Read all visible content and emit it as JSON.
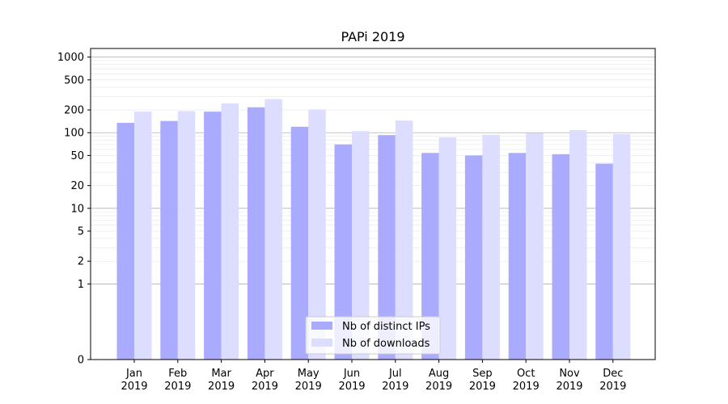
{
  "chart_data": {
    "type": "bar",
    "title": "PAPi 2019",
    "xlabel": "",
    "ylabel": "",
    "yscale": "symlog",
    "ylim": [
      0,
      1300
    ],
    "grid": true,
    "legend_position": "bottom-center",
    "categories": [
      [
        "Jan",
        "2019"
      ],
      [
        "Feb",
        "2019"
      ],
      [
        "Mar",
        "2019"
      ],
      [
        "Apr",
        "2019"
      ],
      [
        "May",
        "2019"
      ],
      [
        "Jun",
        "2019"
      ],
      [
        "Jul",
        "2019"
      ],
      [
        "Aug",
        "2019"
      ],
      [
        "Sep",
        "2019"
      ],
      [
        "Oct",
        "2019"
      ],
      [
        "Nov",
        "2019"
      ],
      [
        "Dec",
        "2019"
      ]
    ],
    "y_ticks": [
      {
        "value": 0,
        "label": "0"
      },
      {
        "value": 1,
        "label": "1"
      },
      {
        "value": 2,
        "label": "2"
      },
      {
        "value": 5,
        "label": "5"
      },
      {
        "value": 10,
        "label": "10"
      },
      {
        "value": 20,
        "label": "20"
      },
      {
        "value": 50,
        "label": "50"
      },
      {
        "value": 100,
        "label": "100"
      },
      {
        "value": 200,
        "label": "200"
      },
      {
        "value": 500,
        "label": "500"
      },
      {
        "value": 1000,
        "label": "1000"
      }
    ],
    "series": [
      {
        "name": "Nb of distinct IPs",
        "color": "#aaaaff",
        "values": [
          135,
          143,
          190,
          217,
          120,
          70,
          93,
          54,
          50,
          54,
          52,
          39
        ]
      },
      {
        "name": "Nb of downloads",
        "color": "#ddddff",
        "values": [
          190,
          193,
          244,
          278,
          203,
          105,
          145,
          87,
          94,
          99,
          108,
          96
        ]
      }
    ]
  }
}
